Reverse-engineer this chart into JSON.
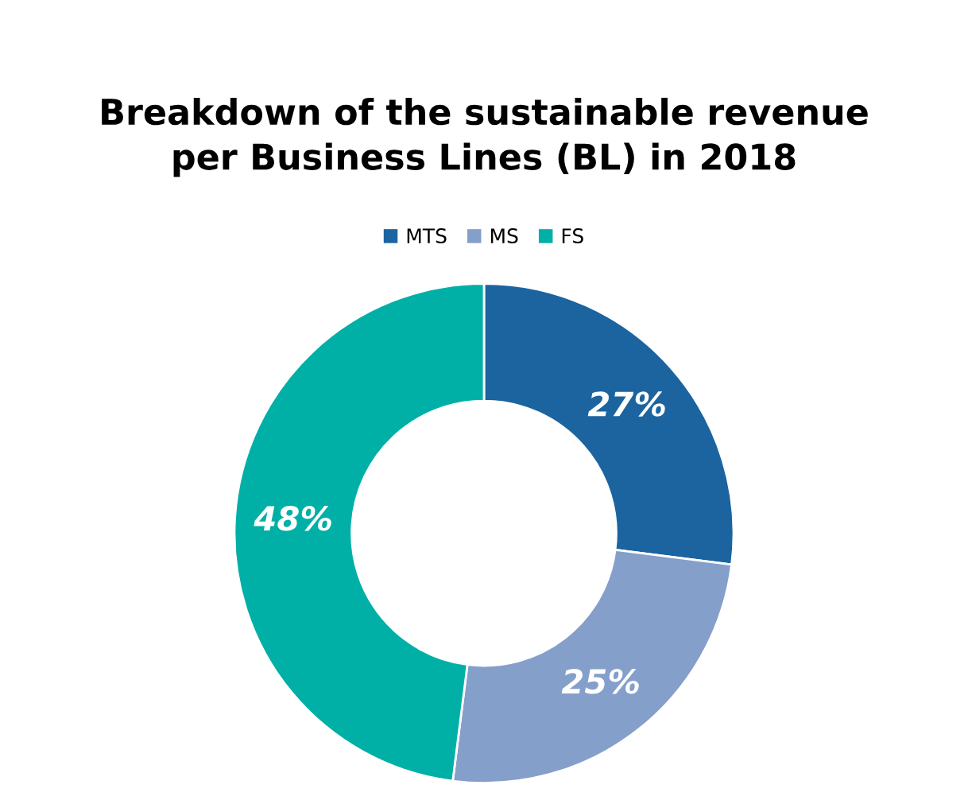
{
  "chart_data": {
    "type": "donut",
    "title": "Breakdown of the sustainable revenue\nper Business Lines (BL) in 2018",
    "categories": [
      "MTS",
      "MS",
      "FS"
    ],
    "values": [
      27,
      25,
      48
    ],
    "colors": [
      "#1b64a0",
      "#859fcb",
      "#00b0a6"
    ],
    "value_labels": [
      "27%",
      "25%",
      "48%"
    ],
    "legend": "top"
  }
}
